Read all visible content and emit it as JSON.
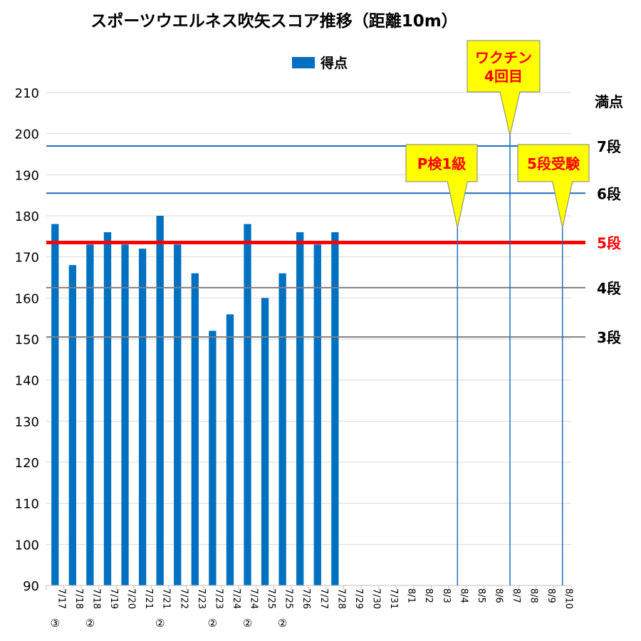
{
  "chart_data": {
    "type": "bar",
    "title": "スポーツウエルネス吹矢スコア推移（距離10m）",
    "legend": {
      "series_name": "得点",
      "placement": "top"
    },
    "colors": {
      "bar": "#0070c0",
      "grid": "#d9d9d9",
      "rank_line": "#1f6fbf",
      "rank5_line": "#ff0000",
      "gray_line": "#808080",
      "callout_fill": "#ffff00",
      "callout_red": "#ff0000"
    },
    "ylim": [
      90,
      210
    ],
    "yticks": [
      90,
      100,
      110,
      120,
      130,
      140,
      150,
      160,
      170,
      180,
      190,
      200,
      210
    ],
    "categories": [
      "7/17③",
      "7/18",
      "7/18②",
      "7/19",
      "7/20",
      "7/21",
      "7/21②",
      "7/22",
      "7/23",
      "7/23②",
      "7/24",
      "7/24②",
      "7/25",
      "7/25②",
      "7/26",
      "7/27",
      "7/28",
      "7/29",
      "7/30",
      "7/31",
      "8/1",
      "8/2",
      "8/3",
      "8/4",
      "8/5",
      "8/6",
      "8/7",
      "8/8",
      "8/9",
      "8/10"
    ],
    "category_labels": [
      {
        "date": "7/17",
        "mark": "③"
      },
      {
        "date": "7/18",
        "mark": ""
      },
      {
        "date": "7/18",
        "mark": "②"
      },
      {
        "date": "7/19",
        "mark": ""
      },
      {
        "date": "7/20",
        "mark": ""
      },
      {
        "date": "7/21",
        "mark": ""
      },
      {
        "date": "7/21",
        "mark": "②"
      },
      {
        "date": "7/22",
        "mark": ""
      },
      {
        "date": "7/23",
        "mark": ""
      },
      {
        "date": "7/23",
        "mark": "②"
      },
      {
        "date": "7/24",
        "mark": ""
      },
      {
        "date": "7/24",
        "mark": "②"
      },
      {
        "date": "7/25",
        "mark": ""
      },
      {
        "date": "7/25",
        "mark": "②"
      },
      {
        "date": "7/26",
        "mark": ""
      },
      {
        "date": "7/27",
        "mark": ""
      },
      {
        "date": "7/28",
        "mark": ""
      },
      {
        "date": "7/29",
        "mark": ""
      },
      {
        "date": "7/30",
        "mark": ""
      },
      {
        "date": "7/31",
        "mark": ""
      },
      {
        "date": "8/1",
        "mark": ""
      },
      {
        "date": "8/2",
        "mark": ""
      },
      {
        "date": "8/3",
        "mark": ""
      },
      {
        "date": "8/4",
        "mark": ""
      },
      {
        "date": "8/5",
        "mark": ""
      },
      {
        "date": "8/6",
        "mark": ""
      },
      {
        "date": "8/7",
        "mark": ""
      },
      {
        "date": "8/8",
        "mark": ""
      },
      {
        "date": "8/9",
        "mark": ""
      },
      {
        "date": "8/10",
        "mark": ""
      }
    ],
    "series": [
      {
        "name": "得点",
        "values": [
          178,
          168,
          173,
          176,
          173,
          172,
          180,
          173,
          166,
          152,
          156,
          178,
          160,
          166,
          176,
          173,
          176,
          null,
          null,
          null,
          null,
          null,
          null,
          null,
          null,
          null,
          null,
          null,
          null,
          null
        ]
      }
    ],
    "reference_lines": [
      {
        "label": "満点",
        "value": 210,
        "style": "none"
      },
      {
        "label": "7段",
        "value": 197,
        "style": "blue"
      },
      {
        "label": "6段",
        "value": 185.5,
        "style": "blue"
      },
      {
        "label": "5段",
        "value": 173.5,
        "style": "red"
      },
      {
        "label": "4段",
        "value": 162.5,
        "style": "gray"
      },
      {
        "label": "3段",
        "value": 150.5,
        "style": "gray"
      }
    ],
    "annotations": [
      {
        "text": "P検1級",
        "category": "8/4",
        "text_color": "red"
      },
      {
        "text": "ワクチン\n4回目",
        "category": "8/7",
        "text_color": "red"
      },
      {
        "text": "5段受験",
        "category": "8/10",
        "text_color": "red"
      }
    ],
    "grid": true
  }
}
